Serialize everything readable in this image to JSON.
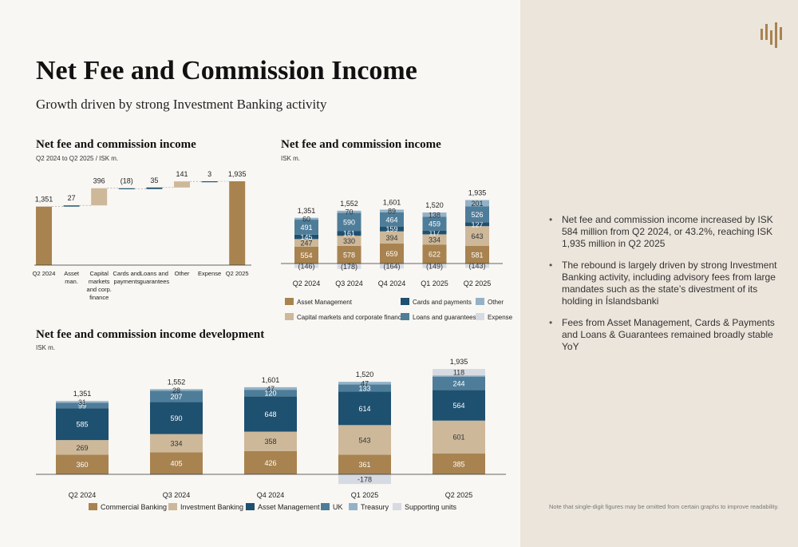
{
  "page": {
    "title": "Net Fee and Commission Income",
    "subtitle": "Growth driven by strong Investment Banking activity",
    "bullets": [
      "Net fee and commission income increased by ISK 584 million from Q2 2024, or 43.2%, reaching ISK 1,935 million in Q2 2025",
      "The rebound is largely driven by strong Investment Banking activity, including advisory fees from large mandates such as the state’s divestment of its holding in Íslandsbanki",
      "Fees from Asset Management, Cards & Payments and Loans & Guarantees remained broadly stable YoY"
    ],
    "footnote": "Note that single-digit figures may be omitted from certain graphs to improve readability."
  },
  "colors": {
    "brown": "#a88350",
    "tan": "#cdb89a",
    "navy": "#1e5070",
    "steel": "#4e7d9a",
    "lightblue": "#93b2c7",
    "pale": "#d6dbe3",
    "panel": "#ece5dc"
  },
  "chart_data": [
    {
      "type": "bar",
      "subtype": "waterfall",
      "title": "Net fee and commission income",
      "subtitle": "Q2 2024 to Q2 2025 / ISK m.",
      "categories": [
        "Q2 2024",
        "Asset man.",
        "Capital markets and corp. finance",
        "Cards and payments",
        "Loans and guarantees",
        "Other",
        "Expense",
        "Q2 2025"
      ],
      "category_lines": [
        [
          "Q2 2024"
        ],
        [
          "Asset",
          "man."
        ],
        [
          "Capital",
          "markets",
          "and corp.",
          "finance"
        ],
        [
          "Cards and",
          "payments"
        ],
        [
          "Loans and",
          "guarantees"
        ],
        [
          "Other"
        ],
        [
          "Expense"
        ],
        [
          "Q2 2025"
        ]
      ],
      "values": [
        1351,
        27,
        396,
        -18,
        35,
        141,
        3,
        1935
      ],
      "labels": [
        "1,351",
        "27",
        "396",
        "(18)",
        "35",
        "141",
        "3",
        "1,935"
      ],
      "ylim": [
        0,
        2000
      ]
    },
    {
      "type": "bar",
      "subtype": "stacked",
      "title": "Net fee and commission income",
      "subtitle": "ISK m.",
      "categories": [
        "Q2 2024",
        "Q3 2024",
        "Q4 2024",
        "Q1 2025",
        "Q2 2025"
      ],
      "totals": [
        1351,
        1552,
        1601,
        1520,
        1935
      ],
      "total_labels": [
        "1,351",
        "1,552",
        "1,601",
        "1,520",
        "1,935"
      ],
      "series": [
        {
          "name": "Asset Management",
          "color": "brown",
          "values": [
            554,
            578,
            659,
            622,
            581
          ]
        },
        {
          "name": "Capital markets and corporate finance",
          "color": "tan",
          "values": [
            247,
            330,
            394,
            334,
            643
          ]
        },
        {
          "name": "Cards and payments",
          "color": "navy",
          "values": [
            145,
            161,
            159,
            117,
            127
          ]
        },
        {
          "name": "Loans and guarantees",
          "color": "steel",
          "values": [
            491,
            590,
            464,
            459,
            526
          ]
        },
        {
          "name": "Other",
          "color": "lightblue",
          "values": [
            60,
            70,
            89,
            138,
            201
          ]
        },
        {
          "name": "Expense",
          "color": "pale",
          "values": [
            -146,
            -178,
            -164,
            -149,
            -143
          ]
        }
      ],
      "value_labels": [
        [
          "554",
          "247",
          "145",
          "491",
          "60",
          "(146)"
        ],
        [
          "578",
          "330",
          "161",
          "590",
          "70",
          "(178)"
        ],
        [
          "659",
          "394",
          "159",
          "464",
          "89",
          "(164)"
        ],
        [
          "622",
          "334",
          "117",
          "459",
          "138",
          "(149)"
        ],
        [
          "581",
          "643",
          "127",
          "526",
          "201",
          "(143)"
        ]
      ],
      "legend": [
        {
          "name": "Asset Management",
          "color": "brown"
        },
        {
          "name": "Cards and payments",
          "color": "navy"
        },
        {
          "name": "Other",
          "color": "lightblue"
        },
        {
          "name": "Capital markets and corporate finance",
          "color": "tan"
        },
        {
          "name": "Loans and guarantees",
          "color": "steel"
        },
        {
          "name": "Expense",
          "color": "pale"
        }
      ],
      "legend_placement": "bottom"
    },
    {
      "type": "bar",
      "subtype": "stacked",
      "title": "Net fee and commission income development",
      "subtitle": "ISK m.",
      "categories": [
        "Q2 2024",
        "Q3 2024",
        "Q4 2024",
        "Q1 2025",
        "Q2 2025"
      ],
      "totals": [
        1351,
        1552,
        1601,
        1520,
        1935
      ],
      "total_labels": [
        "1,351",
        "1,552",
        "1,601",
        "1,520",
        "1,935"
      ],
      "series": [
        {
          "name": "Commercial Banking",
          "color": "brown",
          "values": [
            360,
            405,
            426,
            361,
            385
          ]
        },
        {
          "name": "Investment Banking",
          "color": "tan",
          "values": [
            269,
            334,
            358,
            543,
            601
          ]
        },
        {
          "name": "Asset Management",
          "color": "navy",
          "values": [
            585,
            590,
            648,
            614,
            564
          ]
        },
        {
          "name": "UK",
          "color": "steel",
          "values": [
            99,
            207,
            120,
            133,
            244
          ]
        },
        {
          "name": "Treasury",
          "color": "lightblue",
          "values": [
            31,
            28,
            47,
            47,
            22
          ]
        },
        {
          "name": "Supporting units",
          "color": "pale",
          "values": [
            7,
            -12,
            2,
            -178,
            118
          ]
        }
      ],
      "value_labels": [
        [
          "360",
          "269",
          "585",
          "99",
          "31",
          ""
        ],
        [
          "405",
          "334",
          "590",
          "207",
          "28",
          ""
        ],
        [
          "426",
          "358",
          "648",
          "120",
          "47",
          ""
        ],
        [
          "361",
          "543",
          "614",
          "133",
          "47",
          "-178"
        ],
        [
          "385",
          "601",
          "564",
          "244",
          "",
          "118"
        ]
      ],
      "legend": [
        {
          "name": "Commercial Banking",
          "color": "brown"
        },
        {
          "name": "Investment Banking",
          "color": "tan"
        },
        {
          "name": "Asset Management",
          "color": "navy"
        },
        {
          "name": "UK",
          "color": "steel"
        },
        {
          "name": "Treasury",
          "color": "lightblue"
        },
        {
          "name": "Supporting units",
          "color": "pale"
        }
      ],
      "legend_placement": "bottom"
    }
  ]
}
